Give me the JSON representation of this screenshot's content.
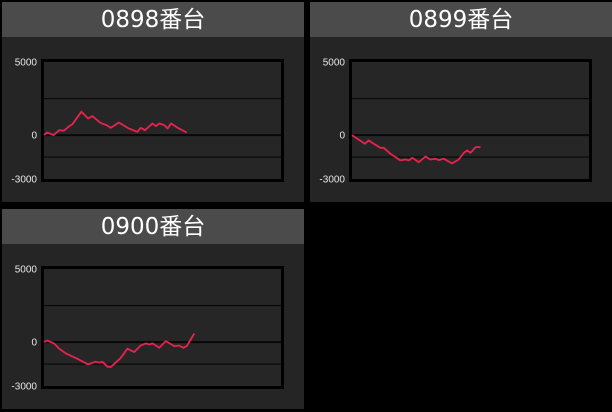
{
  "chart_data": [
    {
      "type": "line",
      "title": "0898番台",
      "ylim": [
        -3000,
        5000
      ],
      "xlim": [
        0,
        50
      ],
      "yticks": [
        "5000",
        "0",
        "-3000"
      ],
      "gridlines": [
        2500,
        0,
        -1500
      ],
      "grid": true,
      "line_color": "#e8234d",
      "x": [
        0,
        0.7,
        2,
        3.2,
        4.2,
        5.3,
        6,
        7.9,
        9.3,
        10.2,
        11.9,
        13.2,
        14.1,
        15.8,
        17.9,
        19.7,
        20.4,
        21.3,
        22.9,
        23.6,
        24.3,
        25.4,
        26.1,
        26.8,
        28.2,
        30.1
      ],
      "y": [
        0,
        180,
        0,
        340,
        300,
        600,
        750,
        1600,
        1140,
        1300,
        840,
        680,
        500,
        860,
        450,
        230,
        500,
        340,
        800,
        610,
        800,
        680,
        450,
        800,
        500,
        180
      ]
    },
    {
      "type": "line",
      "title": "0899番台",
      "ylim": [
        -3000,
        5000
      ],
      "xlim": [
        0,
        50
      ],
      "yticks": [
        "5000",
        "0",
        "-3000"
      ],
      "gridlines": [
        2500,
        0,
        -1500
      ],
      "grid": true,
      "line_color": "#e8234d",
      "x": [
        0,
        1.4,
        2.7,
        3.5,
        4.6,
        6,
        6.7,
        8.1,
        10.2,
        11.3,
        12,
        12.7,
        14.1,
        15.5,
        16.5,
        17.6,
        18.3,
        19.4,
        21.1,
        22.5,
        23.6,
        24.3,
        25,
        26.1,
        27.1
      ],
      "y": [
        0,
        -300,
        -590,
        -360,
        -590,
        -870,
        -870,
        -1280,
        -1730,
        -1670,
        -1730,
        -1550,
        -1850,
        -1460,
        -1670,
        -1620,
        -1710,
        -1620,
        -1940,
        -1670,
        -1210,
        -1050,
        -1210,
        -820,
        -820
      ]
    },
    {
      "type": "line",
      "title": "0900番台",
      "ylim": [
        -3000,
        5000
      ],
      "xlim": [
        0,
        50
      ],
      "yticks": [
        "5000",
        "0",
        "-3000"
      ],
      "gridlines": [
        2500,
        0,
        -1500
      ],
      "grid": true,
      "line_color": "#e8234d",
      "x": [
        0,
        0.7,
        2.1,
        3.2,
        4.6,
        7,
        9.3,
        10.9,
        11.6,
        12.3,
        13.4,
        14.1,
        15.1,
        16.2,
        17.6,
        19,
        20.4,
        21.5,
        22.2,
        22.9,
        24.3,
        25.7,
        27.5,
        28.5,
        29.4,
        30.1,
        31.7
      ],
      "y": [
        0,
        110,
        -90,
        -450,
        -770,
        -1130,
        -1520,
        -1340,
        -1410,
        -1340,
        -1680,
        -1700,
        -1410,
        -1070,
        -450,
        -680,
        -230,
        -90,
        -160,
        -90,
        -390,
        70,
        -270,
        -230,
        -390,
        -270,
        590
      ]
    }
  ]
}
